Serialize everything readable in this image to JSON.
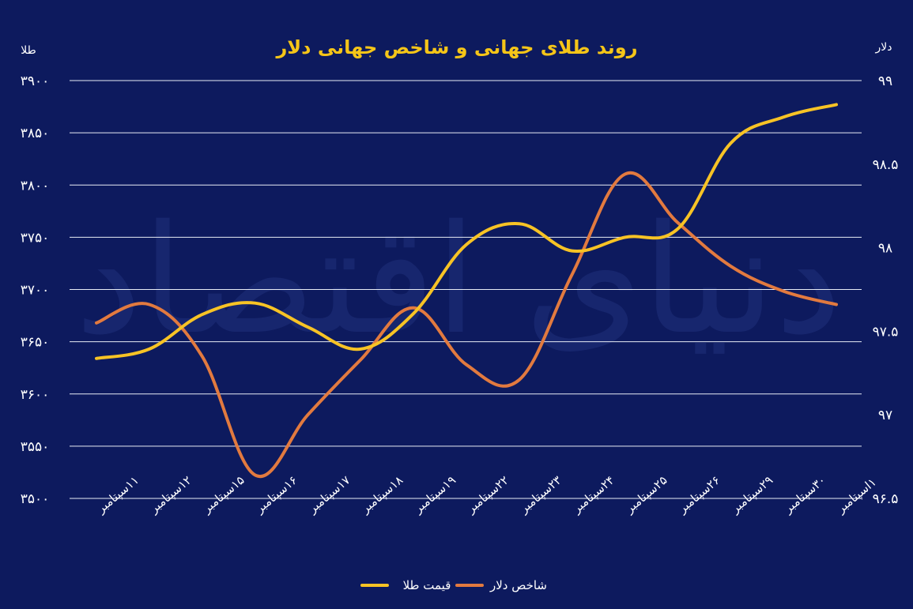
{
  "chart_data": {
    "type": "line",
    "title": "روند طلای جهانی و شاخص جهانی دلار",
    "y_left_label": "طلا",
    "y_right_label": "دلار",
    "y_left_range": [
      3500,
      3900
    ],
    "y_right_range": [
      96.5,
      99
    ],
    "y_left_ticks": [
      "۳۹۰۰",
      "۳۸۵۰",
      "۳۸۰۰",
      "۳۷۵۰",
      "۳۷۰۰",
      "۳۶۵۰",
      "۳۶۰۰",
      "۳۵۵۰",
      "۳۵۰۰"
    ],
    "y_right_ticks": [
      "۹۹",
      "۹۸.۵",
      "۹۸",
      "۹۷.۵",
      "۹۷",
      "۹۶.۵"
    ],
    "categories": [
      "۱۱سپتامبر",
      "۱۲سپتامبر",
      "۱۵سپتامبر",
      "۱۶سپتامبر",
      "۱۷سپتامبر",
      "۱۸سپتامبر",
      "۱۹سپتامبر",
      "۲۲سپتامبر",
      "۲۳سپتامبر",
      "۲۴سپتامبر",
      "۲۵سپتامبر",
      "۲۶سپتامبر",
      "۲۹سپتامبر",
      "۳۰سپتامبر",
      "۱اسپتامبر"
    ],
    "grid": true,
    "legend_position": "bottom",
    "series": [
      {
        "name": "قیمت طلا",
        "axis": "left",
        "color": "#f7c325",
        "values": [
          3634,
          3643,
          3676,
          3687,
          3664,
          3643,
          3677,
          3743,
          3763,
          3737,
          3750,
          3758,
          3840,
          3865,
          3877
        ]
      },
      {
        "name": "شاخص دلار",
        "axis": "right",
        "color": "#e27a3f",
        "values": [
          97.55,
          97.66,
          97.35,
          96.64,
          97.0,
          97.33,
          97.64,
          97.3,
          97.21,
          97.84,
          98.44,
          98.15,
          97.89,
          97.74,
          97.66
        ]
      }
    ]
  }
}
